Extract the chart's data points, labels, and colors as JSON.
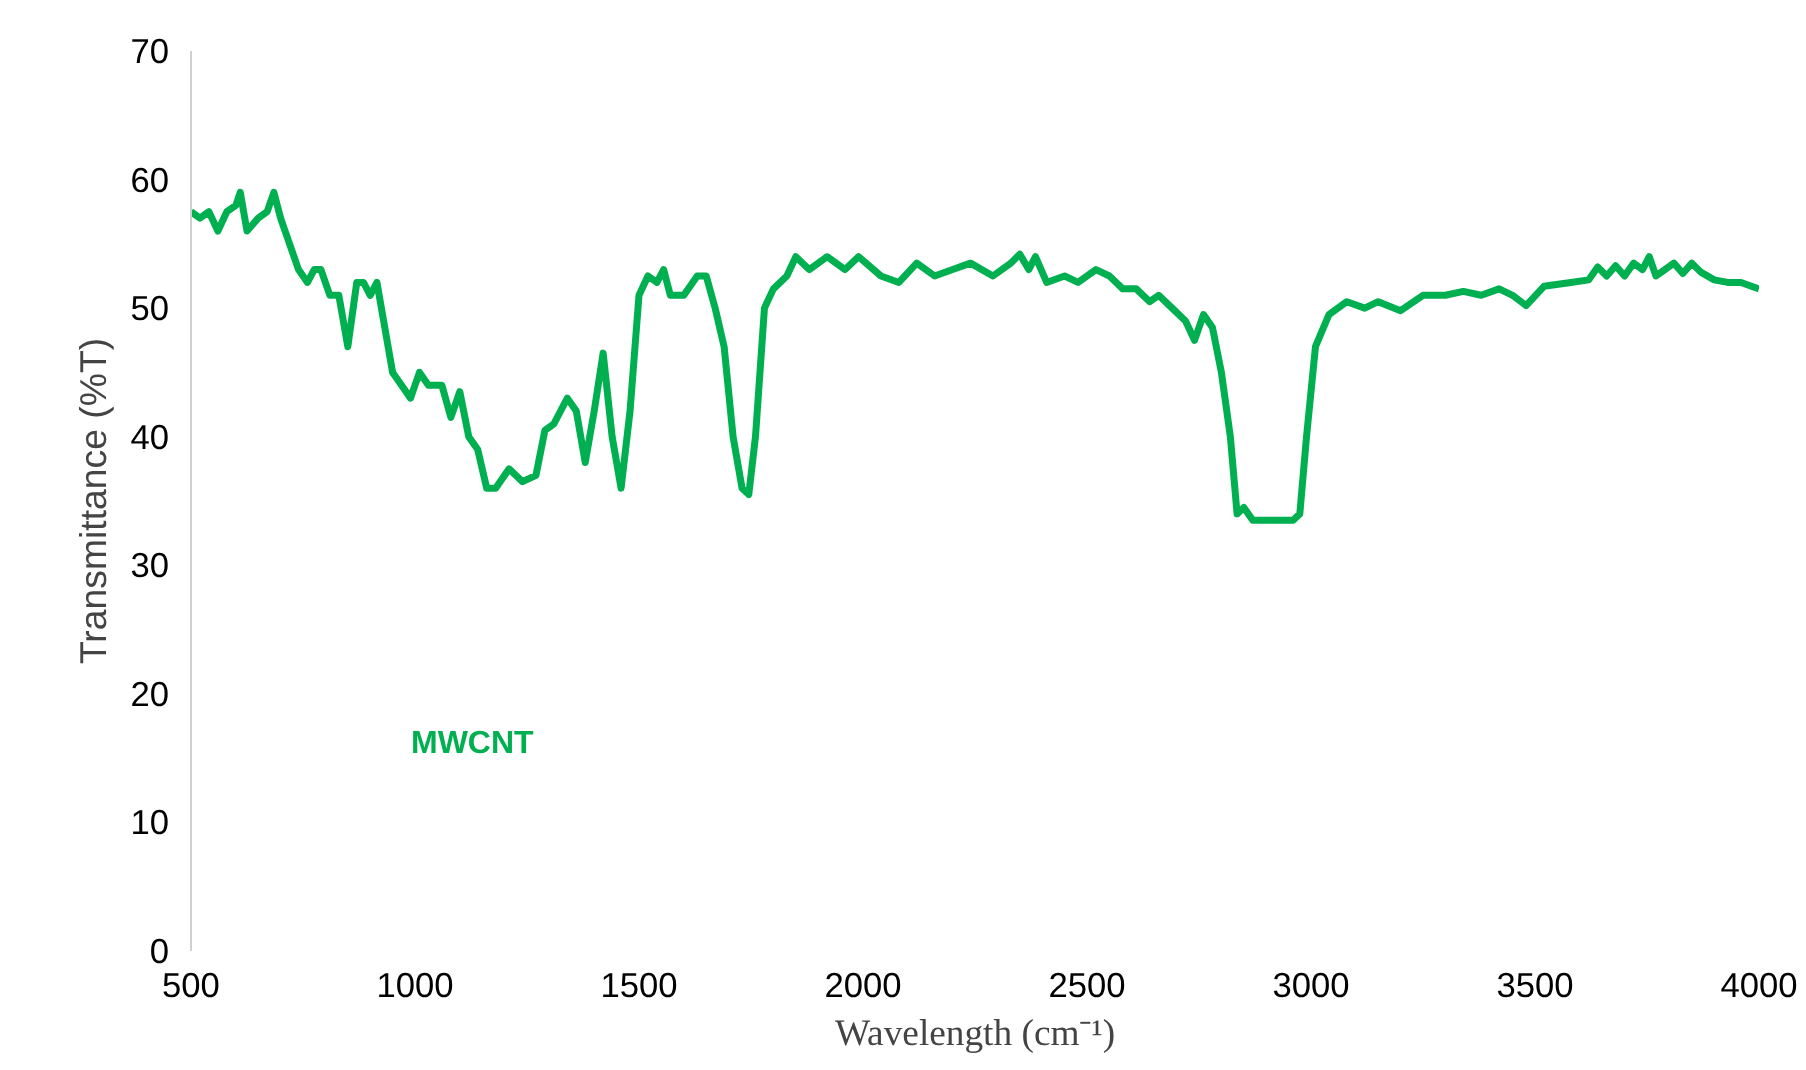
{
  "chart_data": {
    "type": "line",
    "xlabel": "Wavelength (cm⁻¹)",
    "ylabel": "Transmittance (%T)",
    "xlim": [
      500,
      4000
    ],
    "xticks": [
      500,
      1000,
      1500,
      2000,
      2500,
      3000,
      3500,
      4000
    ],
    "ylim": [
      0,
      70
    ],
    "yticks": [
      0,
      10,
      20,
      30,
      40,
      50,
      60,
      70
    ],
    "grid": false,
    "legend": false,
    "marker": "none",
    "line_style": "solid",
    "series": [
      {
        "name": "MWCNT",
        "color": "#00b050",
        "x": [
          500,
          520,
          540,
          560,
          580,
          600,
          610,
          625,
          650,
          670,
          685,
          700,
          720,
          740,
          760,
          775,
          790,
          810,
          830,
          840,
          850,
          870,
          885,
          900,
          915,
          930,
          950,
          970,
          990,
          1010,
          1030,
          1060,
          1080,
          1100,
          1120,
          1140,
          1160,
          1180,
          1210,
          1240,
          1270,
          1290,
          1310,
          1340,
          1360,
          1380,
          1400,
          1420,
          1440,
          1460,
          1480,
          1500,
          1520,
          1540,
          1555,
          1570,
          1600,
          1630,
          1650,
          1670,
          1690,
          1710,
          1730,
          1745,
          1760,
          1780,
          1800,
          1830,
          1850,
          1880,
          1920,
          1960,
          1990,
          2040,
          2080,
          2120,
          2160,
          2200,
          2240,
          2290,
          2330,
          2350,
          2370,
          2385,
          2410,
          2450,
          2480,
          2520,
          2550,
          2580,
          2610,
          2640,
          2660,
          2690,
          2720,
          2740,
          2760,
          2780,
          2800,
          2820,
          2835,
          2850,
          2870,
          2920,
          2960,
          2975,
          2990,
          3010,
          3040,
          3080,
          3120,
          3150,
          3200,
          3250,
          3300,
          3340,
          3380,
          3420,
          3450,
          3480,
          3520,
          3580,
          3620,
          3640,
          3660,
          3680,
          3700,
          3720,
          3740,
          3755,
          3770,
          3790,
          3810,
          3830,
          3850,
          3870,
          3900,
          3930,
          3960,
          4000
        ],
        "values": [
          57.5,
          57,
          57.5,
          56,
          57.5,
          58,
          59,
          56,
          57,
          57.5,
          59,
          57,
          55,
          53,
          52,
          53,
          53,
          51,
          51,
          49,
          47,
          52,
          52,
          51,
          52,
          49,
          45,
          44,
          43,
          45,
          44,
          44,
          41.5,
          43.5,
          40,
          39,
          36,
          36,
          37.5,
          36.5,
          37,
          40.5,
          41,
          43,
          42,
          38,
          42,
          46.5,
          40,
          36,
          42,
          51,
          52.5,
          52,
          53,
          51,
          51,
          52.5,
          52.5,
          50,
          47,
          40,
          36,
          35.5,
          40,
          50,
          51.5,
          52.5,
          54,
          53,
          54,
          53,
          54,
          52.5,
          52,
          53.5,
          52.5,
          53,
          53.5,
          52.5,
          53.5,
          54.2,
          53,
          54,
          52,
          52.5,
          52,
          53,
          52.5,
          51.5,
          51.5,
          50.5,
          51,
          50,
          49,
          47.5,
          49.5,
          48.5,
          45,
          40,
          34,
          34.5,
          33.5,
          33.5,
          33.5,
          34,
          40,
          47,
          49.5,
          50.5,
          50,
          50.5,
          49.8,
          51,
          51,
          51.3,
          51,
          51.5,
          51,
          50.2,
          51.7,
          52,
          52.2,
          53.2,
          52.5,
          53.3,
          52.5,
          53.5,
          53,
          54,
          52.5,
          53,
          53.5,
          52.7,
          53.5,
          52.8,
          52.2,
          52,
          52,
          51.5
        ]
      }
    ]
  }
}
